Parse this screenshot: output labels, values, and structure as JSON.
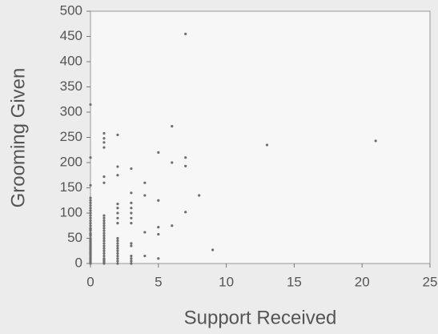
{
  "chart_data": {
    "type": "scatter",
    "x_label": "Support Received",
    "y_label": "Grooming Given",
    "x": [
      0,
      0,
      0,
      0,
      0,
      0,
      0,
      0,
      0,
      0,
      0,
      0,
      0,
      0,
      0,
      0,
      0,
      0,
      0,
      0,
      0,
      0,
      0,
      0,
      0,
      0,
      0,
      0,
      0,
      0,
      0,
      0,
      0,
      0,
      0,
      0,
      0,
      0,
      0,
      0,
      0,
      0,
      1,
      1,
      1,
      1,
      1,
      1,
      1,
      1,
      1,
      1,
      1,
      1,
      1,
      1,
      1,
      1,
      1,
      1,
      1,
      1,
      1,
      1,
      1,
      1,
      1,
      1,
      1,
      1,
      2,
      2,
      2,
      2,
      2,
      2,
      2,
      2,
      2,
      2,
      2,
      2,
      2,
      2,
      2,
      2,
      2,
      2,
      2,
      3,
      3,
      3,
      3,
      3,
      3,
      3,
      3,
      3,
      3,
      3,
      3,
      3,
      4,
      4,
      4,
      4,
      5,
      5,
      5,
      5,
      5,
      6,
      6,
      6,
      7,
      7,
      7,
      7,
      8,
      9,
      13,
      21
    ],
    "values": [
      0,
      3,
      5,
      8,
      10,
      12,
      15,
      18,
      20,
      22,
      25,
      28,
      30,
      33,
      35,
      38,
      40,
      43,
      45,
      48,
      50,
      55,
      58,
      60,
      65,
      68,
      70,
      75,
      80,
      85,
      90,
      95,
      100,
      105,
      110,
      115,
      120,
      125,
      130,
      155,
      210,
      315,
      0,
      3,
      5,
      8,
      10,
      15,
      20,
      25,
      30,
      35,
      40,
      45,
      50,
      55,
      60,
      65,
      70,
      75,
      80,
      85,
      90,
      95,
      160,
      172,
      230,
      240,
      248,
      258,
      0,
      5,
      10,
      15,
      20,
      25,
      30,
      35,
      40,
      45,
      50,
      80,
      90,
      100,
      110,
      118,
      175,
      192,
      255,
      0,
      5,
      10,
      15,
      35,
      40,
      80,
      90,
      100,
      110,
      120,
      140,
      188,
      15,
      62,
      135,
      160,
      10,
      58,
      72,
      125,
      220,
      75,
      200,
      272,
      102,
      193,
      210,
      455,
      135,
      27,
      235,
      243
    ],
    "color": "#6e6e6e",
    "xlim": [
      0,
      25
    ],
    "xticks": [
      0,
      5,
      10,
      15,
      20,
      25
    ],
    "ylim": [
      0,
      500
    ],
    "yticks": [
      0,
      50,
      100,
      150,
      200,
      250,
      300,
      350,
      400,
      450,
      500
    ]
  }
}
